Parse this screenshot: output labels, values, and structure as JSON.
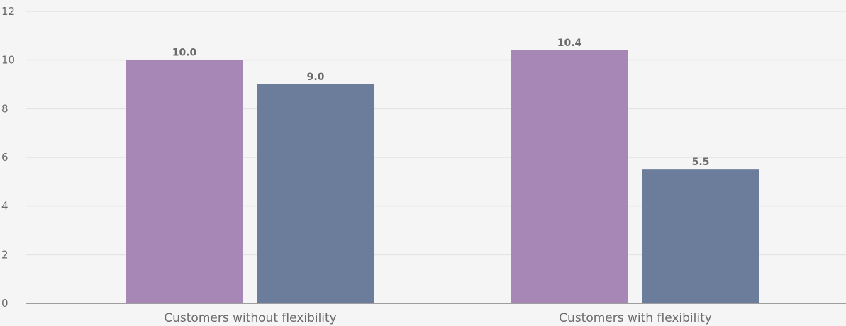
{
  "chart_data": {
    "type": "bar",
    "categories": [
      "Customers without flexibility",
      "Customers with flexibility"
    ],
    "series": [
      {
        "values": [
          10.0,
          10.4
        ],
        "color": "#a687b5"
      },
      {
        "values": [
          9.0,
          5.5
        ],
        "color": "#6b7d9b"
      }
    ],
    "value_labels": [
      [
        "10.0",
        "10.4"
      ],
      [
        "9.0",
        "5.5"
      ]
    ],
    "title": "",
    "xlabel": "",
    "ylabel": "",
    "ylim": [
      0,
      12
    ],
    "yticks": [
      "0",
      "2",
      "4",
      "6",
      "8",
      "10",
      "12"
    ],
    "grid": true,
    "legend": "none"
  },
  "colors": {
    "background": "#f5f5f5",
    "grid": "#e4e4e4",
    "axis": "#6b6b6b",
    "text": "#6b6b6b"
  }
}
